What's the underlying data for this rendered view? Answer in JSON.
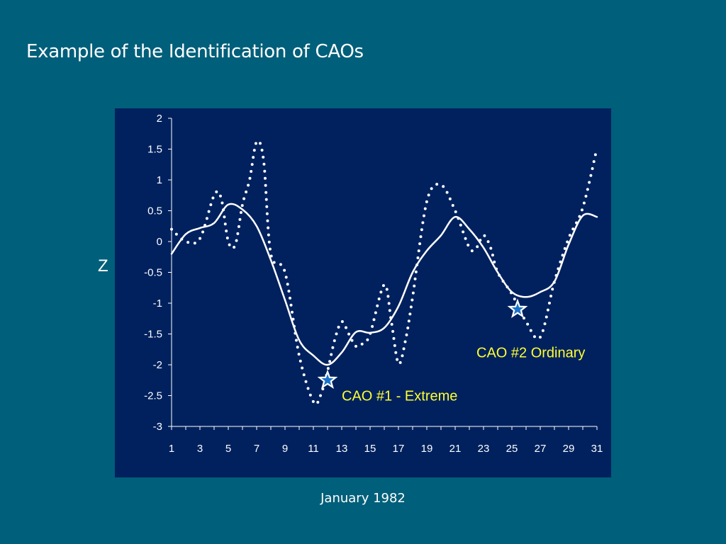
{
  "slide": {
    "title": "Example of the Identification of CAOs"
  },
  "chart_data": {
    "type": "line",
    "title": "",
    "xlabel": "January 1982",
    "ylabel": "Z",
    "xlim": [
      1,
      31
    ],
    "ylim": [
      -3,
      2
    ],
    "x_ticks": [
      1,
      3,
      5,
      7,
      9,
      11,
      13,
      15,
      17,
      19,
      21,
      23,
      25,
      27,
      29,
      31
    ],
    "y_ticks": [
      2,
      1.5,
      1,
      0.5,
      0,
      -0.5,
      -1,
      -1.5,
      -2,
      -2.5,
      -3
    ],
    "y_tick_labels": [
      "2",
      "1.5",
      "1",
      "0.5",
      "0",
      "-0.5",
      "-1",
      "-1.5",
      "-2",
      "-2.5",
      "-3"
    ],
    "grid": false,
    "legend": "none",
    "series": [
      {
        "style": "solid",
        "color": "#ffffff",
        "x": [
          1,
          2,
          3,
          4,
          5,
          6,
          7,
          8,
          9,
          10,
          11,
          12,
          13,
          14,
          15,
          16,
          17,
          18,
          19,
          20,
          21,
          22,
          23,
          24,
          25,
          26,
          27,
          28,
          29,
          30,
          31
        ],
        "values": [
          -0.2,
          0.12,
          0.22,
          0.3,
          0.6,
          0.52,
          0.25,
          -0.3,
          -0.95,
          -1.6,
          -1.85,
          -2.0,
          -1.8,
          -1.47,
          -1.48,
          -1.4,
          -1.05,
          -0.5,
          -0.15,
          0.1,
          0.4,
          0.2,
          -0.1,
          -0.5,
          -0.82,
          -0.9,
          -0.82,
          -0.65,
          -0.05,
          0.42,
          0.4
        ]
      },
      {
        "style": "dotted",
        "color": "#ffffff",
        "x": [
          1,
          2,
          3,
          4,
          4.5,
          5,
          5.5,
          6,
          6.5,
          7,
          7.5,
          8,
          9,
          10,
          11,
          11.5,
          12,
          12.5,
          13,
          13.5,
          14,
          14.5,
          15,
          16,
          16.5,
          17,
          17.5,
          18,
          19,
          20,
          21,
          22,
          22.5,
          23,
          23.5,
          24,
          25,
          26,
          27,
          28,
          29,
          30,
          31
        ],
        "values": [
          0.2,
          0.0,
          0.05,
          0.75,
          0.7,
          0.0,
          -0.05,
          0.6,
          1.0,
          1.62,
          1.3,
          -0.2,
          -0.5,
          -1.85,
          -2.6,
          -2.5,
          -2.1,
          -1.6,
          -1.3,
          -1.5,
          -1.7,
          -1.65,
          -1.5,
          -0.7,
          -1.3,
          -1.98,
          -1.6,
          -0.9,
          0.65,
          0.92,
          0.5,
          -0.1,
          -0.1,
          0.1,
          -0.1,
          -0.5,
          -0.85,
          -1.3,
          -1.55,
          -0.65,
          0.05,
          0.55,
          1.52
        ]
      }
    ],
    "markers": [
      {
        "type": "star",
        "x": 12,
        "y": -2.25
      },
      {
        "type": "star",
        "x": 25.4,
        "y": -1.1
      }
    ],
    "annotations": [
      {
        "text": "CAO #1 - Extreme",
        "x": 13,
        "y": -2.5
      },
      {
        "text": "CAO #2 Ordinary",
        "x": 22.5,
        "y": -1.8
      }
    ],
    "annotation_color": "#ffff33"
  }
}
